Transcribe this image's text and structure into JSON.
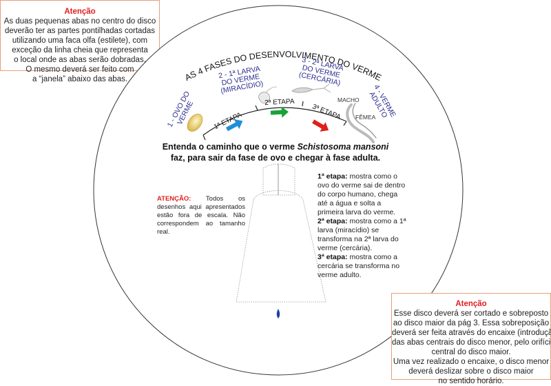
{
  "note_top": {
    "title": "Atenção",
    "lines": [
      "As duas pequenas abas no centro do disco",
      "deverão ter as partes pontilhadas cortadas",
      "utilizando uma faca olfa (estilete), com",
      "exceção da linha cheia que representa",
      "o local onde as abas serão dobradas.",
      "O mesmo deverá ser feito com",
      "a “janela” abaixo das abas."
    ]
  },
  "note_bottom": {
    "title": "Atenção",
    "lines": [
      "Esse disco deverá ser cortado e sobreposto",
      "ao disco maior da pág 3. Essa sobreposição",
      "deverá ser feita através do encaixe (introdução)",
      "das abas centrais do disco menor, pelo orifício",
      "central do disco maior.",
      "Uma vez realizado o encaixe, o disco menor",
      "deverá deslizar sobre o disco maior",
      "no sentido horário."
    ]
  },
  "disc": {
    "arc_title": "AS 4 FASES DO DESENVOLVIMENTO DO VERME",
    "phase1": [
      "1 - OVO DO",
      "VERME"
    ],
    "phase2": [
      "2 - 1ª LARVA",
      "DO VERME",
      "(MIRACÍDIO)"
    ],
    "phase3": [
      "3 - 2ª LARVA",
      "DO VERME",
      "(CERCÁRIA)"
    ],
    "phase4": [
      "4 - VERME",
      "ADULTO"
    ],
    "macho": "MACHO",
    "femea": "FÊMEA",
    "etapa1": "1ª ETAPA",
    "etapa2": "2ª ETAPA",
    "etapa3": "3ª ETAPA",
    "colors": {
      "arrow1": "#1e8fd6",
      "arrow2": "#17a23a",
      "arrow3": "#e0201c",
      "phase_text": "#2b2c8f"
    }
  },
  "center": {
    "line1_pre": "Entenda o caminho que o verme ",
    "line1_italic": "Schistosoma mansoni",
    "line2": "faz, para sair da fase de ovo e chegar à fase adulta."
  },
  "left_note": {
    "label": "ATENÇÃO:",
    "text": " Todos os desenhos aqui apresentados estão fora de escala. Não correspondem ao tamanho real."
  },
  "right_desc": {
    "e1_label": "1ª etapa:",
    "e1_text": " mostra como o ovo do verme sai de dentro do corpo humano, chega até a água e solta a primeira larva do verme.",
    "e2_label": "2ª etapa:",
    "e2_text": " mostra como a 1ª larva (miracídio) se transforma na 2ª larva do verme (cercária).",
    "e3_label": "3ª etapa:",
    "e3_text": " mostra como a cercária se transforma no verme adulto."
  }
}
